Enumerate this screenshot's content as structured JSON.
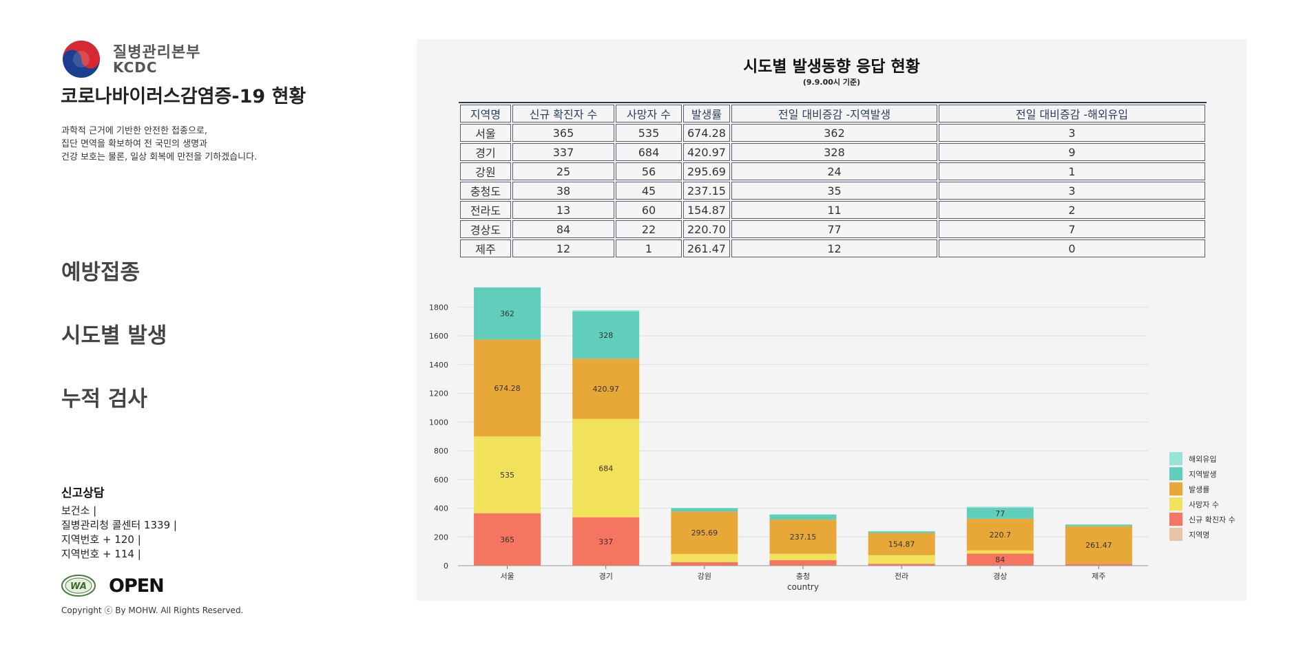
{
  "sidebar": {
    "logo_ko": "질병관리본부",
    "logo_en": "KCDC",
    "title": "코로나바이러스감염증-19 현황",
    "intro": [
      "과학적 근거에 기반한 안전한 접종으로,",
      "집단 면역을 확보하여 전 국민의 생명과",
      "건강 보호는 물론, 일상 회복에 만전을 기하겠습니다."
    ],
    "nav": {
      "vaccine": "예방접종",
      "region": "시도별 발생",
      "tests": "누적 검사"
    },
    "report": {
      "title": "신고상담",
      "lines": [
        "보건소 |",
        "질병관리청 콜센터 1339 |",
        "지역번호 + 120 |",
        "지역번호 + 114 |"
      ]
    },
    "badge_wa": "WA",
    "badge_open": "OPEN",
    "copyright": "Copyright ⓒ By MOHW. All Rights Reserved."
  },
  "panel": {
    "title": "시도별 발생동향 응답 현황",
    "subtitle": "(9.9.00시 기준)",
    "table": {
      "headers": [
        "지역명",
        "신규 확진자 수",
        "사망자 수",
        "발생률",
        "전일 대비증감 -지역발생",
        "전일 대비증감 -해외유입"
      ],
      "rows": [
        [
          "서울",
          "365",
          "535",
          "674.28",
          "362",
          "3"
        ],
        [
          "경기",
          "337",
          "684",
          "420.97",
          "328",
          "9"
        ],
        [
          "강원",
          "25",
          "56",
          "295.69",
          "24",
          "1"
        ],
        [
          "충청도",
          "38",
          "45",
          "237.15",
          "35",
          "3"
        ],
        [
          "전라도",
          "13",
          "60",
          "154.87",
          "11",
          "2"
        ],
        [
          "경상도",
          "84",
          "22",
          "220.70",
          "77",
          "7"
        ],
        [
          "제주",
          "12",
          "1",
          "261.47",
          "12",
          "0"
        ]
      ]
    }
  },
  "chart_data": {
    "type": "bar",
    "stacked": true,
    "categories": [
      "서울",
      "경기",
      "강원",
      "충청",
      "전라",
      "경상",
      "제주"
    ],
    "xlabel": "country",
    "ylabel": "",
    "ylim": [
      0,
      1950
    ],
    "yticks": [
      0,
      200,
      400,
      600,
      800,
      1000,
      1200,
      1400,
      1600,
      1800
    ],
    "grid": true,
    "legend_position": "right",
    "series": [
      {
        "name": "지역명",
        "color": "#e8c4a8",
        "values": [
          0,
          0,
          0,
          0,
          0,
          0,
          0
        ]
      },
      {
        "name": "신규 확진자 수",
        "color": "#f47560",
        "values": [
          365,
          337,
          25,
          38,
          13,
          84,
          12
        ]
      },
      {
        "name": "사망자 수",
        "color": "#f1e15b",
        "values": [
          535,
          684,
          56,
          45,
          60,
          22,
          1
        ]
      },
      {
        "name": "발생률",
        "color": "#e8a838",
        "values": [
          674.28,
          420.97,
          295.69,
          237.15,
          154.87,
          220.7,
          261.47
        ]
      },
      {
        "name": "지역발생",
        "color": "#61cdbb",
        "values": [
          362,
          328,
          24,
          35,
          11,
          77,
          12
        ]
      },
      {
        "name": "해외유입",
        "color": "#97e3d5",
        "values": [
          3,
          9,
          1,
          3,
          2,
          7,
          0
        ]
      }
    ]
  }
}
